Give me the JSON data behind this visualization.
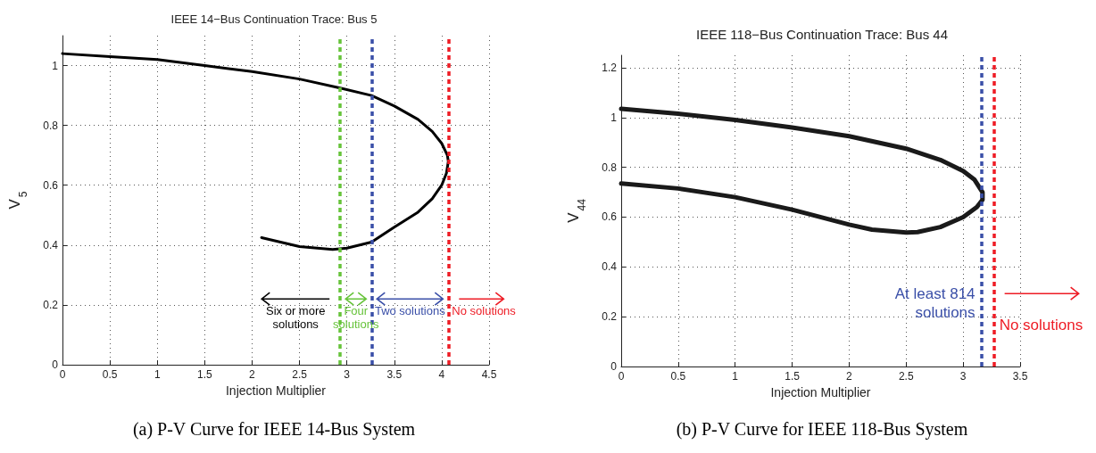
{
  "chart_data": [
    {
      "type": "line",
      "title": "IEEE 14−Bus Continuation Trace: Bus 5",
      "xlabel": "Injection Multiplier",
      "ylabel": "V$_{5}$",
      "series": [
        {
          "color": "#000000",
          "x": [
            0,
            0.5,
            1,
            1.5,
            2,
            2.5,
            2.93,
            3.26,
            3.5,
            3.75,
            3.9,
            4.0,
            4.06,
            4.07,
            4.05,
            4.0,
            3.9,
            3.75,
            3.5,
            3.26,
            3.0,
            2.85,
            2.5,
            2.1
          ],
          "values": [
            1.04,
            1.03,
            1.02,
            1.0,
            0.98,
            0.955,
            0.925,
            0.9,
            0.865,
            0.82,
            0.78,
            0.74,
            0.7,
            0.68,
            0.64,
            0.6,
            0.555,
            0.51,
            0.46,
            0.41,
            0.39,
            0.385,
            0.395,
            0.425
          ]
        }
      ],
      "xlim": [
        0,
        4.5
      ],
      "xticks": [
        0,
        0.5,
        1,
        1.5,
        2,
        2.5,
        3,
        3.5,
        4,
        4.5
      ],
      "ylim": [
        0,
        1.1
      ],
      "yticks": [
        0,
        0.2,
        0.4,
        0.6,
        0.8,
        1
      ],
      "grid": true,
      "marker": "none",
      "line_style": "solid",
      "ref_lines": [
        {
          "axis": "x",
          "value": 2.93,
          "label": "Four solutions",
          "color": "#66c33a",
          "line_style": "dashed"
        },
        {
          "axis": "x",
          "value": 3.26,
          "label": "Two solutions",
          "color": "#3a4fa8",
          "line_style": "dashed"
        },
        {
          "axis": "x",
          "value": 4.07,
          "label": "No solutions",
          "color": "#ee1c25",
          "line_style": "dashed"
        }
      ],
      "annotations": [
        "Six or more solutions",
        "(a) P-V Curve for IEEE 14-Bus System"
      ]
    },
    {
      "type": "line",
      "title": "IEEE 118−Bus Continuation Trace: Bus 44",
      "xlabel": "Injection Multiplier",
      "ylabel": "V$_{44}$",
      "series": [
        {
          "color": "#1a1a1a",
          "x": [
            0,
            0.5,
            1,
            1.5,
            2,
            2.5,
            2.8,
            3.0,
            3.1,
            3.17,
            3.17,
            3.12,
            3.0,
            2.8,
            2.6,
            2.5,
            2.2,
            2.0,
            1.5,
            1.0,
            0.5,
            0
          ],
          "values": [
            1.035,
            1.015,
            0.99,
            0.96,
            0.925,
            0.875,
            0.83,
            0.785,
            0.75,
            0.7,
            0.67,
            0.64,
            0.6,
            0.56,
            0.54,
            0.538,
            0.55,
            0.57,
            0.63,
            0.68,
            0.715,
            0.735
          ]
        }
      ],
      "xlim": [
        0,
        3.5
      ],
      "xticks": [
        0,
        0.5,
        1,
        1.5,
        2,
        2.5,
        3,
        3.5
      ],
      "ylim": [
        0,
        1.25
      ],
      "yticks": [
        0,
        0.2,
        0.4,
        0.6,
        0.8,
        1,
        1.2
      ],
      "grid": true,
      "marker": "none",
      "line_style": "solid",
      "ref_lines": [
        {
          "axis": "x",
          "value": 3.16,
          "label": "At least 814 solutions",
          "color": "#3a4fa8",
          "line_style": "dashed"
        },
        {
          "axis": "x",
          "value": 3.27,
          "label": "No solutions",
          "color": "#ee1c25",
          "line_style": "dashed"
        }
      ],
      "annotations": [
        "(b) P-V Curve for IEEE 118-Bus System"
      ]
    }
  ]
}
